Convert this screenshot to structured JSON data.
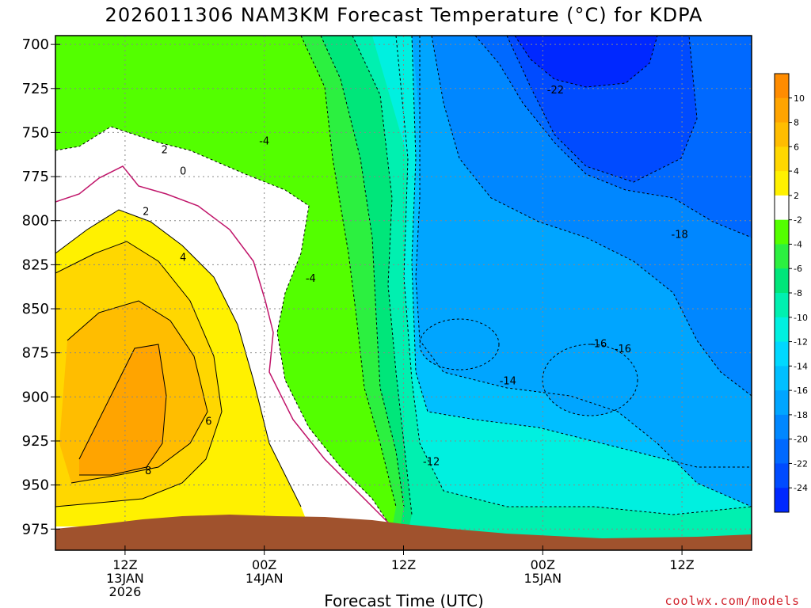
{
  "chart_data": {
    "type": "heatmap",
    "title": "2026011306 NAM3KM Forecast Temperature (°C) for KDPA",
    "xlabel": "Forecast Time (UTC)",
    "ylabel": "",
    "pressure_ticks": [
      "700",
      "725",
      "750",
      "775",
      "800",
      "825",
      "850",
      "875",
      "900",
      "925",
      "950",
      "975"
    ],
    "time_ticks": [
      {
        "hour": 6,
        "line1": "12Z",
        "line2": "13JAN",
        "line3": "2026"
      },
      {
        "hour": 18,
        "line1": "00Z",
        "line2": "14JAN",
        "line3": ""
      },
      {
        "hour": 30,
        "line1": "12Z",
        "line2": "",
        "line3": ""
      },
      {
        "hour": 42,
        "line1": "00Z",
        "line2": "15JAN",
        "line3": ""
      },
      {
        "hour": 54,
        "line1": "12Z",
        "line2": "",
        "line3": ""
      }
    ],
    "xlim": [
      0,
      60
    ],
    "ylim": [
      987,
      695
    ],
    "grid": true,
    "colorbar": {
      "labels": [
        "10",
        "8",
        "6",
        "4",
        "2",
        "-2",
        "-4",
        "-6",
        "-8",
        "-10",
        "-12",
        "-14",
        "-16",
        "-18",
        "-20",
        "-22",
        "-24"
      ],
      "colors": [
        "#ff8c00",
        "#ffa400",
        "#ffbd00",
        "#ffd700",
        "#fff100",
        "#ffffff",
        "#53ff00",
        "#2cf040",
        "#00e67a",
        "#00f0b0",
        "#00f0e0",
        "#00d8ff",
        "#00bfff",
        "#00a5ff",
        "#0087ff",
        "#0069ff",
        "#004bff",
        "#0028ff"
      ]
    },
    "contour_labels": [
      {
        "text": "2",
        "t": 9.4,
        "p": 760
      },
      {
        "text": "-4",
        "t": 18.0,
        "p": 755
      },
      {
        "text": "0",
        "t": 11.0,
        "p": 772
      },
      {
        "text": "2",
        "t": 7.8,
        "p": 795
      },
      {
        "text": "4",
        "t": 11.0,
        "p": 821
      },
      {
        "text": "-4",
        "t": 22.0,
        "p": 833
      },
      {
        "text": "6",
        "t": 13.2,
        "p": 914
      },
      {
        "text": "8",
        "t": 8.0,
        "p": 942
      },
      {
        "text": "-22",
        "t": 43.1,
        "p": 726
      },
      {
        "text": "-18",
        "t": 53.8,
        "p": 808
      },
      {
        "text": "-16",
        "t": 46.8,
        "p": 870
      },
      {
        "text": "-16",
        "t": 48.9,
        "p": 873
      },
      {
        "text": "-14",
        "t": 39.0,
        "p": 891
      },
      {
        "text": "-12",
        "t": 32.4,
        "p": 937
      }
    ],
    "series": [
      {
        "name": "",
        "values": [
          {
            "t": 0,
            "p": 700,
            "temp": -4
          },
          {
            "t": 0,
            "p": 775,
            "temp": 0
          },
          {
            "t": 0,
            "p": 850,
            "temp": 4
          },
          {
            "t": 0,
            "p": 925,
            "temp": 6
          },
          {
            "t": 6,
            "p": 700,
            "temp": -4
          },
          {
            "t": 6,
            "p": 775,
            "temp": 0
          },
          {
            "t": 6,
            "p": 850,
            "temp": 5
          },
          {
            "t": 6,
            "p": 925,
            "temp": 9
          },
          {
            "t": 12,
            "p": 700,
            "temp": -5
          },
          {
            "t": 12,
            "p": 775,
            "temp": -1
          },
          {
            "t": 12,
            "p": 850,
            "temp": 4
          },
          {
            "t": 12,
            "p": 925,
            "temp": 8
          },
          {
            "t": 18,
            "p": 700,
            "temp": -6
          },
          {
            "t": 18,
            "p": 775,
            "temp": -3
          },
          {
            "t": 18,
            "p": 850,
            "temp": 0
          },
          {
            "t": 18,
            "p": 925,
            "temp": 3
          },
          {
            "t": 24,
            "p": 700,
            "temp": -9
          },
          {
            "t": 24,
            "p": 775,
            "temp": -7
          },
          {
            "t": 24,
            "p": 850,
            "temp": -4
          },
          {
            "t": 24,
            "p": 925,
            "temp": -2
          },
          {
            "t": 30,
            "p": 700,
            "temp": -14
          },
          {
            "t": 30,
            "p": 775,
            "temp": -12
          },
          {
            "t": 30,
            "p": 850,
            "temp": -10
          },
          {
            "t": 30,
            "p": 925,
            "temp": -8
          },
          {
            "t": 36,
            "p": 700,
            "temp": -19
          },
          {
            "t": 36,
            "p": 775,
            "temp": -17
          },
          {
            "t": 36,
            "p": 850,
            "temp": -15
          },
          {
            "t": 36,
            "p": 925,
            "temp": -12
          },
          {
            "t": 42,
            "p": 700,
            "temp": -23
          },
          {
            "t": 42,
            "p": 775,
            "temp": -19
          },
          {
            "t": 42,
            "p": 850,
            "temp": -15
          },
          {
            "t": 42,
            "p": 925,
            "temp": -13
          },
          {
            "t": 48,
            "p": 700,
            "temp": -22
          },
          {
            "t": 48,
            "p": 775,
            "temp": -19
          },
          {
            "t": 48,
            "p": 850,
            "temp": -16
          },
          {
            "t": 48,
            "p": 925,
            "temp": -14
          },
          {
            "t": 54,
            "p": 700,
            "temp": -20
          },
          {
            "t": 54,
            "p": 775,
            "temp": -18
          },
          {
            "t": 54,
            "p": 850,
            "temp": -16
          },
          {
            "t": 54,
            "p": 925,
            "temp": -15
          },
          {
            "t": 60,
            "p": 700,
            "temp": -18
          },
          {
            "t": 60,
            "p": 775,
            "temp": -16
          },
          {
            "t": 60,
            "p": 850,
            "temp": -14
          },
          {
            "t": 60,
            "p": 925,
            "temp": -11
          }
        ]
      }
    ],
    "terrain": {
      "color": "#a0522d",
      "label": ""
    }
  },
  "credit": "coolwx.com/models"
}
